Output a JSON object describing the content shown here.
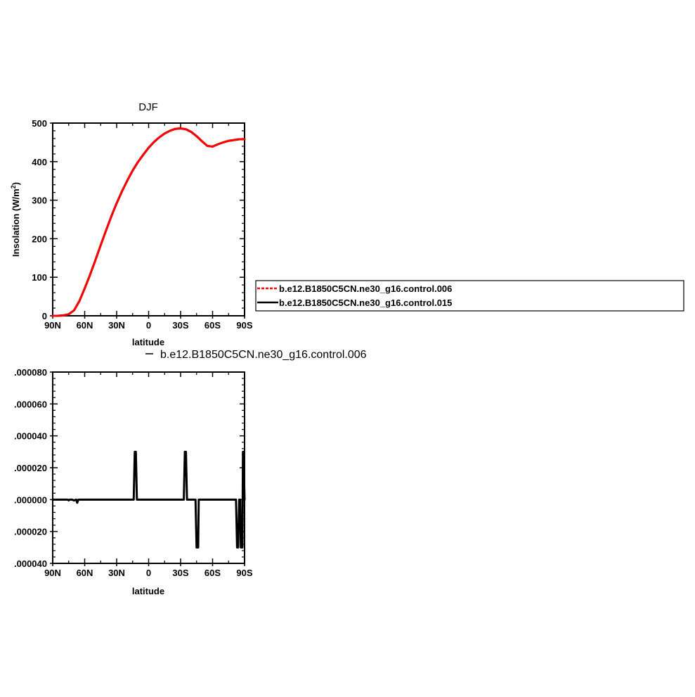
{
  "chart_data": [
    {
      "type": "line",
      "title": "DJF",
      "xlabel": "latitude",
      "ylabel": "Insolation  (W/m",
      "ylabel_sup": "2",
      "ylabel_close": ")",
      "xlim": [
        90,
        -90
      ],
      "ylim": [
        0,
        500
      ],
      "x_ticks": [
        90,
        60,
        30,
        0,
        -30,
        -60,
        -90
      ],
      "x_tick_labels": [
        "90N",
        "60N",
        "30N",
        "0",
        "30S",
        "60S",
        "90S"
      ],
      "y_ticks": [
        0,
        100,
        200,
        300,
        400,
        500
      ],
      "y_tick_labels": [
        "0",
        "100",
        "200",
        "300",
        "400",
        "500"
      ],
      "x": [
        90,
        85,
        80,
        75,
        70,
        65,
        60,
        55,
        50,
        45,
        40,
        35,
        30,
        25,
        20,
        15,
        10,
        5,
        0,
        -5,
        -10,
        -15,
        -20,
        -25,
        -30,
        -35,
        -40,
        -45,
        -50,
        -55,
        -60,
        -65,
        -70,
        -75,
        -80,
        -85,
        -90
      ],
      "series": [
        {
          "name": "b.e12.B1850C5CN.ne30_g16.control.006",
          "color": "#ff0000",
          "style": "dashed",
          "values": [
            0,
            0,
            1,
            4,
            14,
            38,
            71,
            106,
            144,
            183,
            221,
            258,
            292,
            323,
            351,
            377,
            399,
            418,
            436,
            451,
            463,
            473,
            480,
            485,
            486,
            484,
            477,
            466,
            453,
            441,
            439,
            445,
            450,
            454,
            456,
            458,
            458
          ]
        },
        {
          "name": "b.e12.B1850C5CN.ne30_g16.control.015",
          "color": "#000000",
          "style": "solid",
          "values": [
            0,
            0,
            1,
            4,
            14,
            38,
            71,
            106,
            144,
            183,
            221,
            258,
            292,
            323,
            351,
            377,
            399,
            418,
            436,
            451,
            463,
            473,
            480,
            485,
            486,
            484,
            477,
            466,
            453,
            441,
            439,
            445,
            450,
            454,
            456,
            458,
            458
          ]
        }
      ],
      "legend": "right"
    },
    {
      "type": "line",
      "title": "b.e12.B1850C5CN.ne30_g16.control.006",
      "xlabel": "latitude",
      "xlim": [
        90,
        -90
      ],
      "ylim": [
        -4e-05,
        8e-05
      ],
      "x_ticks": [
        90,
        60,
        30,
        0,
        -30,
        -60,
        -90
      ],
      "x_tick_labels": [
        "90N",
        "60N",
        "30N",
        "0",
        "30S",
        "60S",
        "90S"
      ],
      "y_ticks": [
        8e-05,
        6e-05,
        4e-05,
        2e-05,
        0,
        -2e-05,
        -4e-05
      ],
      "y_tick_labels": [
        ".000080",
        ".000060",
        ".000040",
        ".000020",
        ".000000",
        ".000020",
        ".000040"
      ],
      "series": [
        {
          "color": "#000000",
          "x": [
            90,
            76,
            75,
            74,
            72,
            70,
            68,
            67,
            66,
            30,
            14,
            13,
            12.5,
            12,
            11,
            10,
            -33,
            -34,
            -34.5,
            -35,
            -36,
            -44,
            -45,
            -46,
            -46.5,
            -47,
            -48,
            -82,
            -83,
            -84,
            -85,
            -86,
            -86.5,
            -87,
            -88,
            -88.5,
            -89,
            -90
          ],
          "values": [
            0,
            0,
            -5e-07,
            0,
            0,
            -5e-07,
            0,
            -2e-06,
            0,
            0,
            0,
            3e-05,
            3e-05,
            3e-05,
            0,
            0,
            0,
            3e-05,
            3e-05,
            3e-05,
            0,
            0,
            -3e-05,
            -3e-05,
            -3e-05,
            0,
            0,
            0,
            -3e-05,
            -3e-05,
            0,
            0,
            -3e-05,
            -3e-05,
            -3e-05,
            3e-05,
            3e-05,
            0
          ]
        }
      ]
    }
  ]
}
